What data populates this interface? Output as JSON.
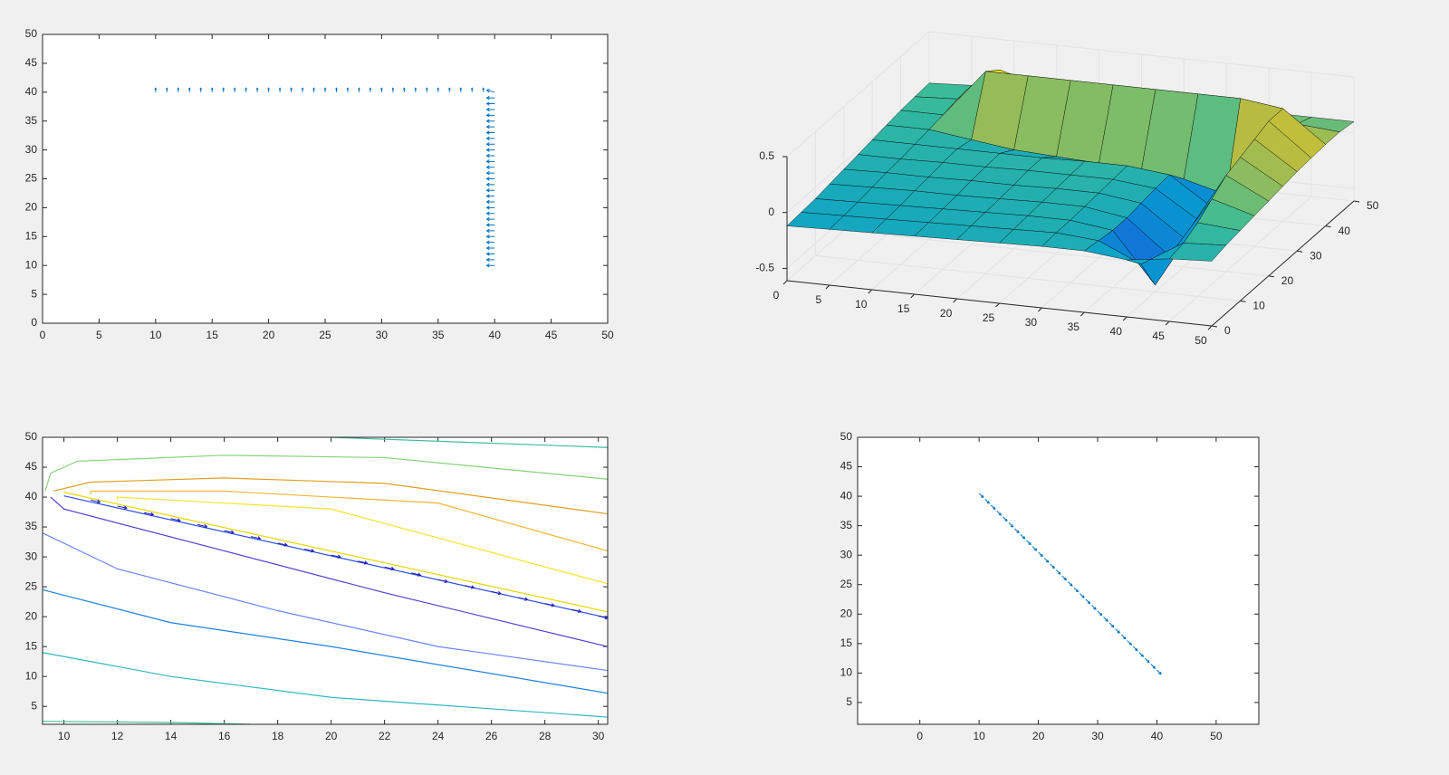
{
  "chart_data": [
    {
      "type": "quiver",
      "xlim": [
        0,
        50
      ],
      "ylim": [
        0,
        50
      ],
      "xticks": [
        0,
        5,
        10,
        15,
        20,
        25,
        30,
        35,
        40,
        45,
        50
      ],
      "yticks": [
        0,
        5,
        10,
        15,
        20,
        25,
        30,
        35,
        40,
        45,
        50
      ],
      "color": "#0072bd",
      "x": [
        10,
        11,
        12,
        13,
        14,
        15,
        16,
        17,
        18,
        19,
        20,
        21,
        22,
        23,
        24,
        25,
        26,
        27,
        28,
        29,
        30,
        31,
        32,
        33,
        34,
        35,
        36,
        37,
        38,
        39,
        40,
        40,
        40,
        40,
        40,
        40,
        40,
        40,
        40,
        40,
        40,
        40,
        40,
        40,
        40,
        40,
        40,
        40,
        40,
        40,
        40,
        40,
        40,
        40,
        40,
        40,
        40,
        40,
        40,
        40,
        40
      ],
      "y": [
        40,
        40,
        40,
        40,
        40,
        40,
        40,
        40,
        40,
        40,
        40,
        40,
        40,
        40,
        40,
        40,
        40,
        40,
        40,
        40,
        40,
        40,
        40,
        40,
        40,
        40,
        40,
        40,
        40,
        40,
        40,
        39,
        38,
        37,
        36,
        35,
        34,
        33,
        32,
        31,
        30,
        29,
        28,
        27,
        26,
        25,
        24,
        23,
        22,
        21,
        20,
        19,
        18,
        17,
        16,
        15,
        14,
        13,
        12,
        11,
        10
      ],
      "u": [
        0,
        0,
        0,
        0,
        0,
        0,
        0,
        0,
        0,
        0,
        0,
        0,
        0,
        0,
        0,
        0,
        0,
        0,
        0,
        0,
        0,
        0,
        0,
        0,
        0,
        0,
        0,
        0,
        0,
        0,
        -1,
        -1,
        -1,
        -1,
        -1,
        -1,
        -1,
        -1,
        -1,
        -1,
        -1,
        -1,
        -1,
        -1,
        -1,
        -1,
        -1,
        -1,
        -1,
        -1,
        -1,
        -1,
        -1,
        -1,
        -1,
        -1,
        -1,
        -1,
        -1,
        -1,
        -1
      ],
      "v": [
        1,
        1,
        1,
        1,
        1,
        1,
        1,
        1,
        1,
        1,
        1,
        1,
        1,
        1,
        1,
        1,
        1,
        1,
        1,
        1,
        1,
        1,
        1,
        1,
        1,
        1,
        1,
        1,
        1,
        1,
        0.5,
        0,
        0,
        0,
        0,
        0,
        0,
        0,
        0,
        0,
        0,
        0,
        0,
        0,
        0,
        0,
        0,
        0,
        0,
        0,
        0,
        0,
        0,
        0,
        0,
        0,
        0,
        0,
        0,
        0,
        0
      ]
    },
    {
      "type": "surface",
      "xlim": [
        0,
        50
      ],
      "ylim": [
        0,
        50
      ],
      "zlim": [
        -0.61,
        0.5
      ],
      "xticks": [
        0,
        5,
        10,
        15,
        20,
        25,
        30,
        35,
        40,
        45,
        50
      ],
      "yticks": [
        0,
        10,
        20,
        30,
        40,
        50
      ],
      "zticks": [
        -0.5,
        0,
        0.5
      ],
      "colormap": "parula",
      "edgecolor": "#000000",
      "x": [
        0,
        5,
        10,
        15,
        20,
        25,
        30,
        35,
        40,
        45,
        50
      ],
      "y": [
        0,
        5,
        10,
        15,
        20,
        25,
        30,
        35,
        40,
        45,
        50
      ],
      "z": [
        [
          -0.12,
          -0.11,
          -0.1,
          -0.09,
          -0.08,
          -0.07,
          -0.06,
          -0.06,
          -0.1,
          -0.05,
          -0.03
        ],
        [
          -0.11,
          -0.1,
          -0.09,
          -0.08,
          -0.07,
          -0.06,
          -0.05,
          -0.08,
          -0.25,
          -0.02,
          0.0
        ],
        [
          -0.1,
          -0.09,
          -0.08,
          -0.07,
          -0.06,
          -0.05,
          -0.05,
          -0.1,
          -0.55,
          0.05,
          0.02
        ],
        [
          -0.08,
          -0.07,
          -0.06,
          -0.06,
          -0.05,
          -0.04,
          -0.04,
          -0.1,
          -0.4,
          0.15,
          0.04
        ],
        [
          -0.06,
          -0.05,
          -0.05,
          -0.04,
          -0.04,
          -0.03,
          -0.03,
          -0.08,
          -0.35,
          0.25,
          0.06
        ],
        [
          -0.04,
          -0.04,
          -0.03,
          -0.03,
          -0.02,
          -0.02,
          -0.02,
          -0.06,
          -0.3,
          0.3,
          0.08
        ],
        [
          -0.02,
          -0.02,
          -0.02,
          -0.02,
          -0.02,
          -0.01,
          -0.01,
          -0.05,
          -0.3,
          0.35,
          0.1
        ],
        [
          0.0,
          0.0,
          -0.05,
          -0.1,
          -0.12,
          -0.14,
          -0.16,
          -0.2,
          -0.3,
          0.4,
          0.11
        ],
        [
          0.02,
          0.02,
          0.45,
          0.45,
          0.45,
          0.45,
          0.45,
          0.45,
          0.45,
          0.4,
          0.12
        ],
        [
          0.03,
          0.05,
          0.35,
          0.25,
          0.2,
          0.18,
          0.16,
          0.15,
          0.15,
          0.15,
          0.12
        ],
        [
          0.04,
          0.06,
          0.15,
          0.12,
          0.11,
          0.1,
          0.1,
          0.1,
          0.1,
          0.1,
          0.1
        ]
      ]
    },
    {
      "type": "contour",
      "xlim": [
        9.2,
        30.35
      ],
      "ylim": [
        2,
        50
      ],
      "xticks": [
        10,
        12,
        14,
        16,
        18,
        20,
        22,
        24,
        26,
        28,
        30
      ],
      "yticks": [
        5,
        10,
        15,
        20,
        25,
        30,
        35,
        40,
        45,
        50
      ],
      "series": [
        {
          "color": "#86d27a",
          "x": [
            9.3,
            9.5,
            10.5,
            16,
            22,
            30.35
          ],
          "y": [
            41,
            44,
            46,
            47,
            46.6,
            43
          ]
        },
        {
          "color": "#3dbf9e",
          "x": [
            20,
            30.35
          ],
          "y": [
            50,
            48.3
          ]
        },
        {
          "color": "#e0a020",
          "x": [
            9.6,
            11,
            16,
            22,
            30.35
          ],
          "y": [
            41,
            42.5,
            43.2,
            42.3,
            37.2
          ]
        },
        {
          "color": "#f2b535",
          "x": [
            11,
            11,
            16,
            24,
            30.35
          ],
          "y": [
            40.5,
            41,
            41,
            39,
            31
          ]
        },
        {
          "color": "#f5e52a",
          "x": [
            12,
            12,
            20,
            30.35
          ],
          "y": [
            39.5,
            40,
            38,
            25.5
          ]
        },
        {
          "color": "#e8d800",
          "x": [
            10,
            30.35
          ],
          "y": [
            40.8,
            20.8
          ]
        },
        {
          "color": "#2f4fe0",
          "x": [
            10,
            30.35
          ],
          "y": [
            40.2,
            19.8
          ]
        },
        {
          "color": "#5040d0",
          "x": [
            9.5,
            10,
            16,
            22,
            30.35
          ],
          "y": [
            40,
            38,
            31,
            24,
            15
          ]
        },
        {
          "color": "#6a86ff",
          "x": [
            9.2,
            12,
            18,
            24,
            30.35
          ],
          "y": [
            34,
            28,
            21,
            15,
            11
          ]
        },
        {
          "color": "#2080e0",
          "x": [
            9.2,
            14,
            20,
            30.35
          ],
          "y": [
            24.5,
            19,
            15,
            7.2
          ]
        },
        {
          "color": "#30b8c0",
          "x": [
            9.2,
            14,
            20,
            30.35
          ],
          "y": [
            14,
            10,
            6.5,
            3.2
          ]
        },
        {
          "color": "#40c090",
          "x": [
            9.2,
            14,
            17
          ],
          "y": [
            2.5,
            2.3,
            2
          ]
        }
      ],
      "quiver": {
        "color": "#2020c0",
        "x": [
          11,
          12,
          13,
          14,
          15,
          16,
          17,
          18,
          19,
          20,
          21,
          22,
          23,
          24,
          25,
          26,
          27,
          28,
          29,
          30
        ],
        "y": [
          39.5,
          38.5,
          37.4,
          36.4,
          35.4,
          34.4,
          33.4,
          32.3,
          31.3,
          30.3,
          29.3,
          28.3,
          27.3,
          26.2,
          25.2,
          24.2,
          23.2,
          22.2,
          21.2,
          20.1
        ],
        "u": [
          0.5,
          0.5,
          0.5,
          0.5,
          0.5,
          0.5,
          0.5,
          0.5,
          0.5,
          0.5,
          0.5,
          0.5,
          0.5,
          0.5,
          0.5,
          0.5,
          0.5,
          0.5,
          0.5,
          0.5
        ],
        "v": [
          -0.5,
          -0.5,
          -0.5,
          -0.5,
          -0.5,
          -0.5,
          -0.5,
          -0.5,
          -0.5,
          -0.5,
          -0.5,
          -0.5,
          -0.5,
          -0.5,
          -0.5,
          -0.5,
          -0.5,
          -0.5,
          -0.5,
          -0.5
        ]
      }
    },
    {
      "type": "quiver",
      "xlim": [
        -10.5,
        57.2
      ],
      "ylim": [
        1.3,
        50
      ],
      "xticks": [
        0,
        10,
        20,
        30,
        40,
        50
      ],
      "yticks": [
        5,
        10,
        15,
        20,
        25,
        30,
        35,
        40,
        45,
        50
      ],
      "color": "#0072bd",
      "x": [
        10,
        11,
        12,
        13,
        14,
        15,
        16,
        17,
        18,
        19,
        20,
        21,
        22,
        23,
        24,
        25,
        26,
        27,
        28,
        29,
        30,
        31,
        32,
        33,
        34,
        35,
        36,
        37,
        38,
        39,
        40
      ],
      "y": [
        40.5,
        39.5,
        38.5,
        37.5,
        36.5,
        35.5,
        34.5,
        33.5,
        32.5,
        31.5,
        30.5,
        29.5,
        28.5,
        27.5,
        26.5,
        25.5,
        24.5,
        23.5,
        22.5,
        21.5,
        20.5,
        19.5,
        18.5,
        17.5,
        16.5,
        15.5,
        14.5,
        13.5,
        12.5,
        11.5,
        10.5
      ],
      "u": [
        1,
        1,
        1,
        1,
        1,
        1,
        1,
        1,
        1,
        1,
        1,
        1,
        1,
        1,
        1,
        1,
        1,
        1,
        1,
        1,
        1,
        1,
        1,
        1,
        1,
        1,
        1,
        1,
        1,
        1,
        1
      ],
      "v": [
        -1,
        -1,
        -1,
        -1,
        -1,
        -1,
        -1,
        -1,
        -1,
        -1,
        -1,
        -1,
        -1,
        -1,
        -1,
        -1,
        -1,
        -1,
        -1,
        -1,
        -1,
        -1,
        -1,
        -1,
        -1,
        -1,
        -1,
        -1,
        -1,
        -1,
        -1
      ]
    }
  ]
}
